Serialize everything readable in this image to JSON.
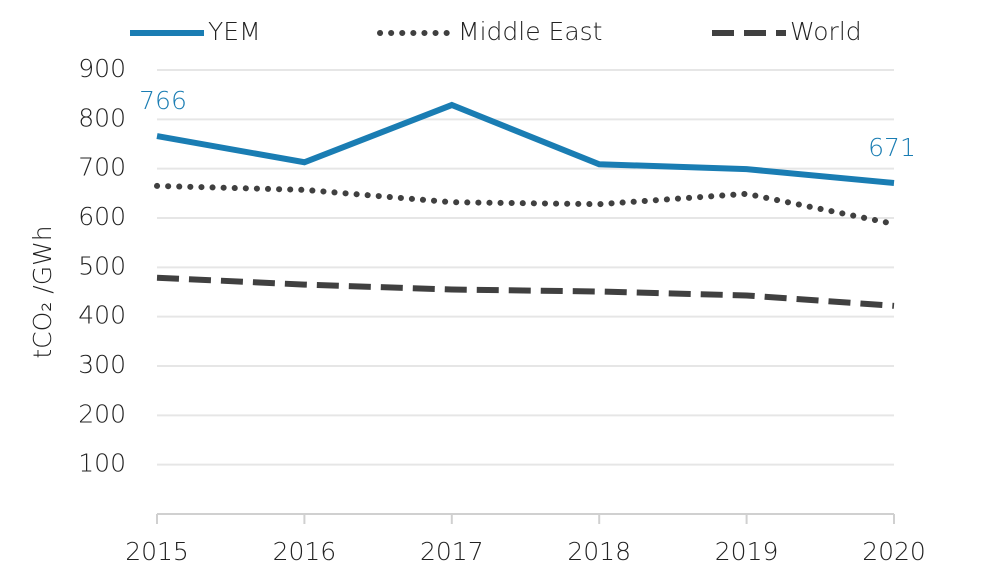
{
  "chart_data": {
    "type": "line",
    "y_label": "tCO₂ /GWh",
    "categories": [
      "2015",
      "2016",
      "2017",
      "2018",
      "2019",
      "2020"
    ],
    "series": [
      {
        "name": "YEM",
        "color": "#1a7db3",
        "style": "solid",
        "values": [
          766,
          713,
          829,
          709,
          699,
          671
        ]
      },
      {
        "name": "Middle East",
        "color": "#404040",
        "style": "dotted",
        "values": [
          665,
          657,
          632,
          628,
          649,
          588
        ]
      },
      {
        "name": "World",
        "color": "#404040",
        "style": "dashed",
        "values": [
          479,
          465,
          455,
          451,
          443,
          422
        ]
      }
    ],
    "labeled_points": [
      [
        0,
        0
      ],
      [
        0,
        5
      ]
    ],
    "ylim": [
      0,
      900
    ],
    "yticks": [
      100,
      200,
      300,
      400,
      500,
      600,
      700,
      800,
      900
    ],
    "grid": true,
    "legend": "top"
  }
}
